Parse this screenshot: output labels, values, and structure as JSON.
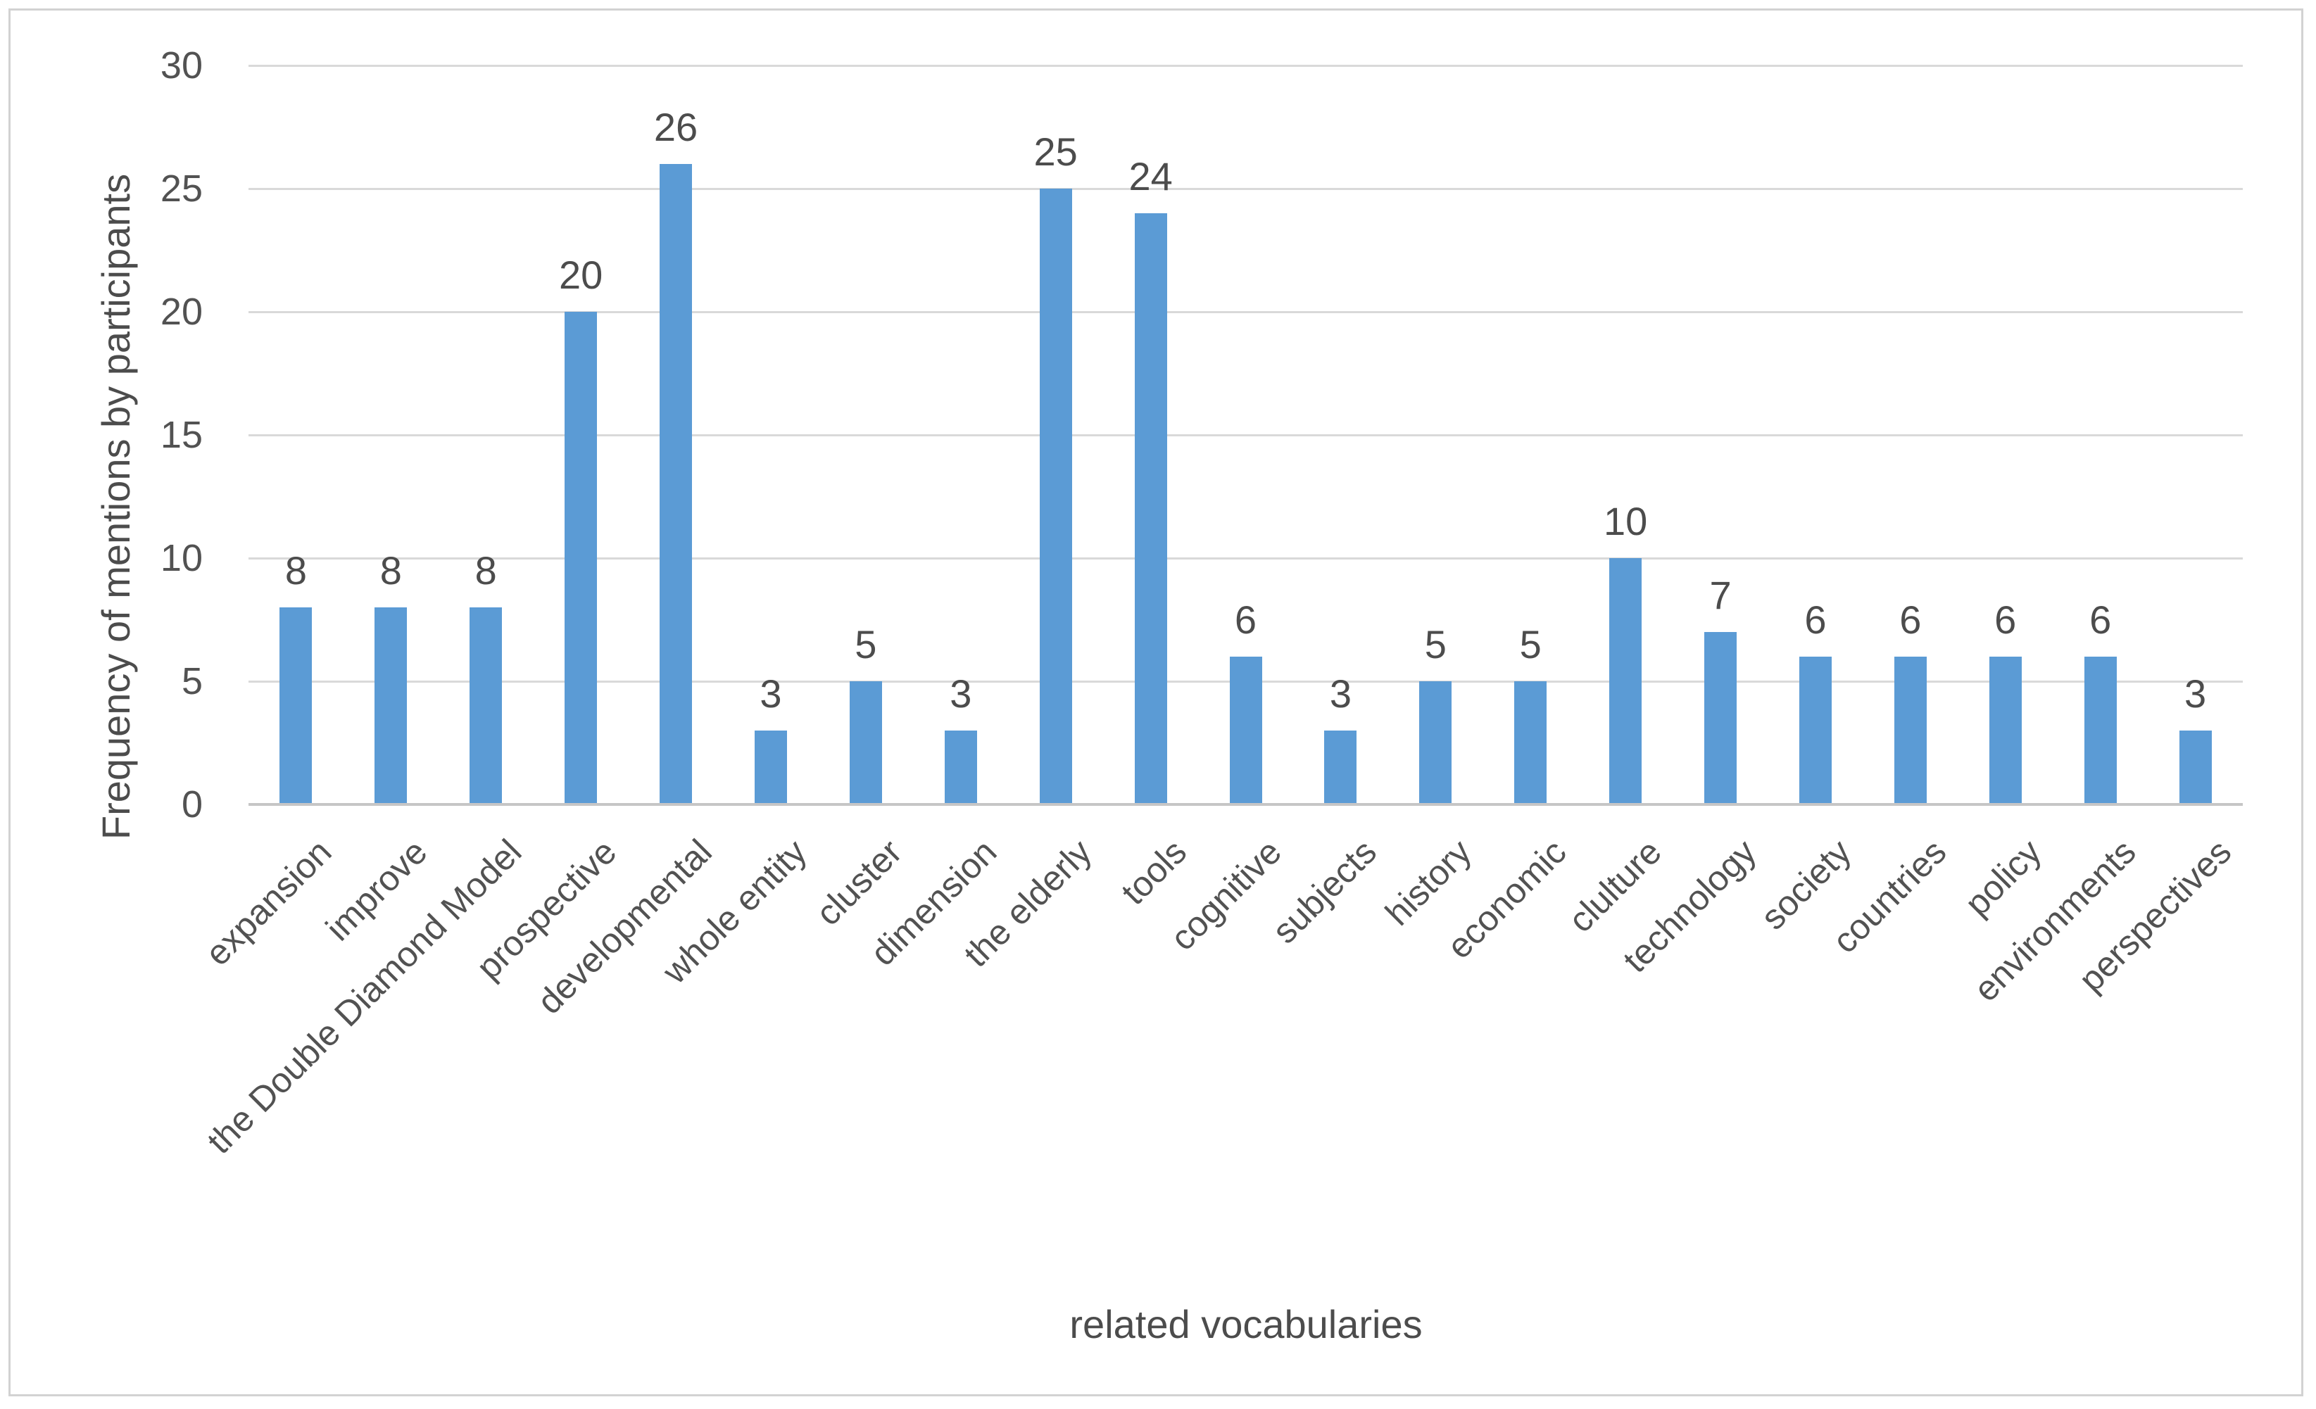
{
  "chart_data": {
    "type": "bar",
    "title": "",
    "xlabel": "related vocabularies",
    "ylabel": "Frequency of mentions by participants",
    "categories": [
      "expansion",
      "improve",
      "the Double Diamond Model",
      "prospective",
      "developmental",
      "whole entity",
      "cluster",
      "dimension",
      "the elderly",
      "tools",
      "cognitive",
      "subjects",
      "history",
      "economic",
      "clulture",
      "technology",
      "society",
      "countries",
      "policy",
      "environments",
      "perspectives"
    ],
    "values": [
      8,
      8,
      8,
      20,
      26,
      3,
      5,
      3,
      25,
      24,
      6,
      3,
      5,
      5,
      10,
      7,
      6,
      6,
      6,
      6,
      3
    ],
    "ylim": [
      0,
      30
    ],
    "yticks": [
      0,
      5,
      10,
      15,
      20,
      25,
      30
    ],
    "data_labels": true,
    "grid": true,
    "legend_position": "none",
    "bar_color": "#5b9bd5",
    "gridline_color": "#d9d9d9",
    "axis_line_color": "#c6c6c6",
    "text_color": "#525252",
    "frame_color": "#d2d2d2"
  }
}
